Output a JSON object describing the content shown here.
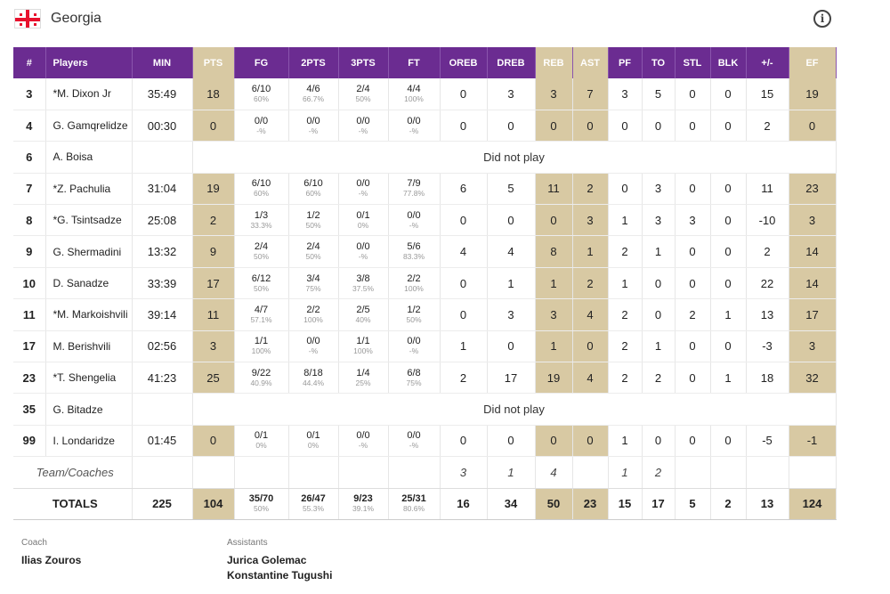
{
  "team": {
    "name": "Georgia",
    "flag_color": "#e8112d",
    "accent": "#6b2c91",
    "highlight": "#d8c9a3"
  },
  "info_icon": {
    "glyph": "i"
  },
  "columns": [
    "#",
    "Players",
    "MIN",
    "PTS",
    "FG",
    "2PTS",
    "3PTS",
    "FT",
    "OREB",
    "DREB",
    "REB",
    "AST",
    "PF",
    "TO",
    "STL",
    "BLK",
    "+/-",
    "EF"
  ],
  "players": [
    {
      "num": "3",
      "name": "*M. Dixon Jr",
      "min": "35:49",
      "pts": "18",
      "fg": "6/10",
      "fg_pct": "60%",
      "two": "4/6",
      "two_pct": "66.7%",
      "three": "2/4",
      "three_pct": "50%",
      "ft": "4/4",
      "ft_pct": "100%",
      "oreb": "0",
      "dreb": "3",
      "reb": "3",
      "ast": "7",
      "pf": "3",
      "to": "5",
      "stl": "0",
      "blk": "0",
      "pm": "15",
      "ef": "19"
    },
    {
      "num": "4",
      "name": "G. Gamqrelidze",
      "min": "00:30",
      "pts": "0",
      "fg": "0/0",
      "fg_pct": "-%",
      "two": "0/0",
      "two_pct": "-%",
      "three": "0/0",
      "three_pct": "-%",
      "ft": "0/0",
      "ft_pct": "-%",
      "oreb": "0",
      "dreb": "0",
      "reb": "0",
      "ast": "0",
      "pf": "0",
      "to": "0",
      "stl": "0",
      "blk": "0",
      "pm": "2",
      "ef": "0"
    },
    {
      "num": "6",
      "name": "A. Boisa",
      "dnp": "Did not play"
    },
    {
      "num": "7",
      "name": "*Z. Pachulia",
      "min": "31:04",
      "pts": "19",
      "fg": "6/10",
      "fg_pct": "60%",
      "two": "6/10",
      "two_pct": "60%",
      "three": "0/0",
      "three_pct": "-%",
      "ft": "7/9",
      "ft_pct": "77.8%",
      "oreb": "6",
      "dreb": "5",
      "reb": "11",
      "ast": "2",
      "pf": "0",
      "to": "3",
      "stl": "0",
      "blk": "0",
      "pm": "11",
      "ef": "23"
    },
    {
      "num": "8",
      "name": "*G. Tsintsadze",
      "min": "25:08",
      "pts": "2",
      "fg": "1/3",
      "fg_pct": "33.3%",
      "two": "1/2",
      "two_pct": "50%",
      "three": "0/1",
      "three_pct": "0%",
      "ft": "0/0",
      "ft_pct": "-%",
      "oreb": "0",
      "dreb": "0",
      "reb": "0",
      "ast": "3",
      "pf": "1",
      "to": "3",
      "stl": "3",
      "blk": "0",
      "pm": "-10",
      "ef": "3"
    },
    {
      "num": "9",
      "name": "G. Shermadini",
      "min": "13:32",
      "pts": "9",
      "fg": "2/4",
      "fg_pct": "50%",
      "two": "2/4",
      "two_pct": "50%",
      "three": "0/0",
      "three_pct": "-%",
      "ft": "5/6",
      "ft_pct": "83.3%",
      "oreb": "4",
      "dreb": "4",
      "reb": "8",
      "ast": "1",
      "pf": "2",
      "to": "1",
      "stl": "0",
      "blk": "0",
      "pm": "2",
      "ef": "14"
    },
    {
      "num": "10",
      "name": "D. Sanadze",
      "min": "33:39",
      "pts": "17",
      "fg": "6/12",
      "fg_pct": "50%",
      "two": "3/4",
      "two_pct": "75%",
      "three": "3/8",
      "three_pct": "37.5%",
      "ft": "2/2",
      "ft_pct": "100%",
      "oreb": "0",
      "dreb": "1",
      "reb": "1",
      "ast": "2",
      "pf": "1",
      "to": "0",
      "stl": "0",
      "blk": "0",
      "pm": "22",
      "ef": "14"
    },
    {
      "num": "11",
      "name": "*M. Markoishvili",
      "min": "39:14",
      "pts": "11",
      "fg": "4/7",
      "fg_pct": "57.1%",
      "two": "2/2",
      "two_pct": "100%",
      "three": "2/5",
      "three_pct": "40%",
      "ft": "1/2",
      "ft_pct": "50%",
      "oreb": "0",
      "dreb": "3",
      "reb": "3",
      "ast": "4",
      "pf": "2",
      "to": "0",
      "stl": "2",
      "blk": "1",
      "pm": "13",
      "ef": "17"
    },
    {
      "num": "17",
      "name": "M. Berishvili",
      "min": "02:56",
      "pts": "3",
      "fg": "1/1",
      "fg_pct": "100%",
      "two": "0/0",
      "two_pct": "-%",
      "three": "1/1",
      "three_pct": "100%",
      "ft": "0/0",
      "ft_pct": "-%",
      "oreb": "1",
      "dreb": "0",
      "reb": "1",
      "ast": "0",
      "pf": "2",
      "to": "1",
      "stl": "0",
      "blk": "0",
      "pm": "-3",
      "ef": "3"
    },
    {
      "num": "23",
      "name": "*T. Shengelia",
      "min": "41:23",
      "pts": "25",
      "fg": "9/22",
      "fg_pct": "40.9%",
      "two": "8/18",
      "two_pct": "44.4%",
      "three": "1/4",
      "three_pct": "25%",
      "ft": "6/8",
      "ft_pct": "75%",
      "oreb": "2",
      "dreb": "17",
      "reb": "19",
      "ast": "4",
      "pf": "2",
      "to": "2",
      "stl": "0",
      "blk": "1",
      "pm": "18",
      "ef": "32"
    },
    {
      "num": "35",
      "name": "G. Bitadze",
      "dnp": "Did not play"
    },
    {
      "num": "99",
      "name": "I. Londaridze",
      "min": "01:45",
      "pts": "0",
      "fg": "0/1",
      "fg_pct": "0%",
      "two": "0/1",
      "two_pct": "0%",
      "three": "0/0",
      "three_pct": "-%",
      "ft": "0/0",
      "ft_pct": "-%",
      "oreb": "0",
      "dreb": "0",
      "reb": "0",
      "ast": "0",
      "pf": "1",
      "to": "0",
      "stl": "0",
      "blk": "0",
      "pm": "-5",
      "ef": "-1"
    }
  ],
  "team_coaches": {
    "label": "Team/Coaches",
    "oreb": "3",
    "dreb": "1",
    "reb": "4",
    "pf": "1",
    "to": "2"
  },
  "totals": {
    "label": "TOTALS",
    "min": "225",
    "pts": "104",
    "fg": "35/70",
    "fg_pct": "50%",
    "two": "26/47",
    "two_pct": "55.3%",
    "three": "9/23",
    "three_pct": "39.1%",
    "ft": "25/31",
    "ft_pct": "80.6%",
    "oreb": "16",
    "dreb": "34",
    "reb": "50",
    "ast": "23",
    "pf": "15",
    "to": "17",
    "stl": "5",
    "blk": "2",
    "pm": "13",
    "ef": "124"
  },
  "staff": {
    "coach_label": "Coach",
    "coach": "Ilias Zouros",
    "assistants_label": "Assistants",
    "assistants": [
      "Jurica Golemac",
      "Konstantine Tugushi"
    ]
  }
}
